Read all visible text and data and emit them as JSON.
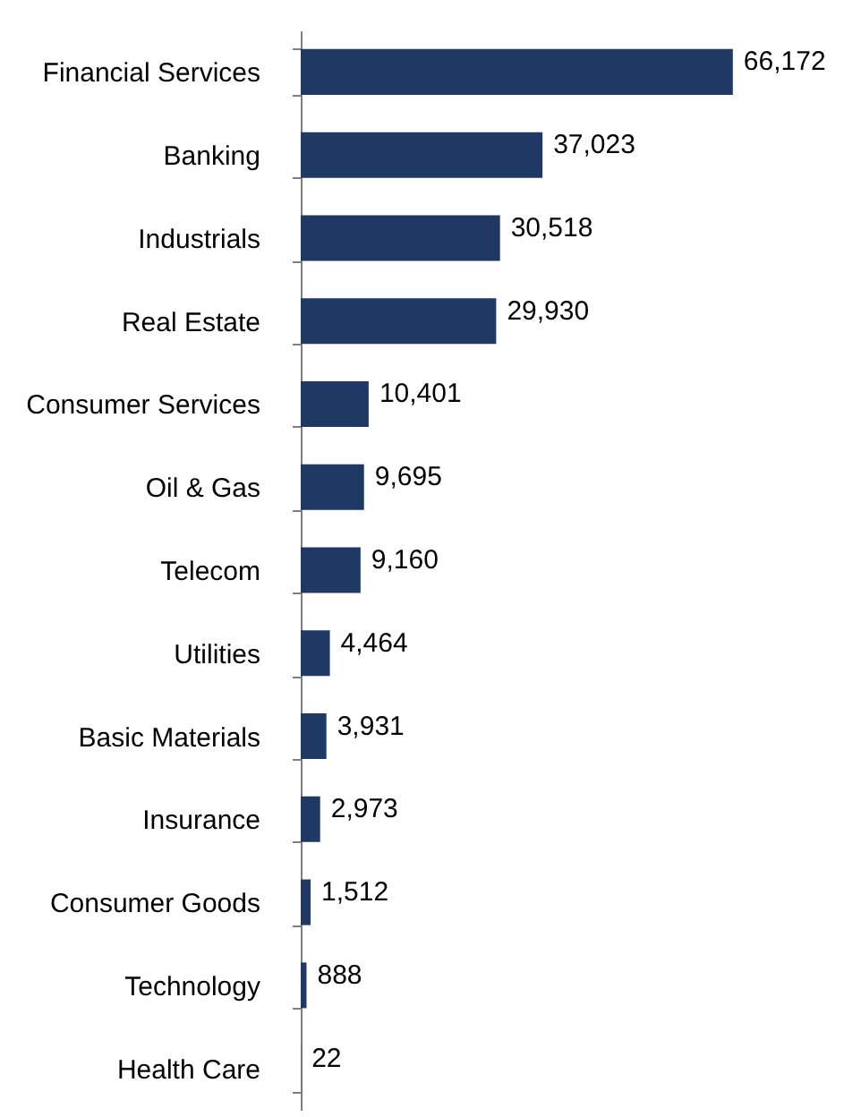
{
  "chart_data": {
    "type": "bar",
    "orientation": "horizontal",
    "color": "#1f3864",
    "tick_labels": "y",
    "categories": [
      "Financial Services",
      "Banking",
      "Industrials",
      "Real Estate",
      "Consumer Services",
      "Oil & Gas",
      "Telecom",
      "Utilities",
      "Basic Materials",
      "Insurance",
      "Consumer Goods",
      "Technology",
      "Health Care"
    ],
    "values": [
      66172,
      37023,
      30518,
      29930,
      10401,
      9695,
      9160,
      4464,
      3931,
      2973,
      1512,
      888,
      22
    ],
    "value_labels": [
      "66,172",
      "37,023",
      "30,518",
      "29,930",
      "10,401",
      "9,695",
      "9,160",
      "4,464",
      "3,931",
      "2,973",
      "1,512",
      "888",
      "22"
    ]
  }
}
